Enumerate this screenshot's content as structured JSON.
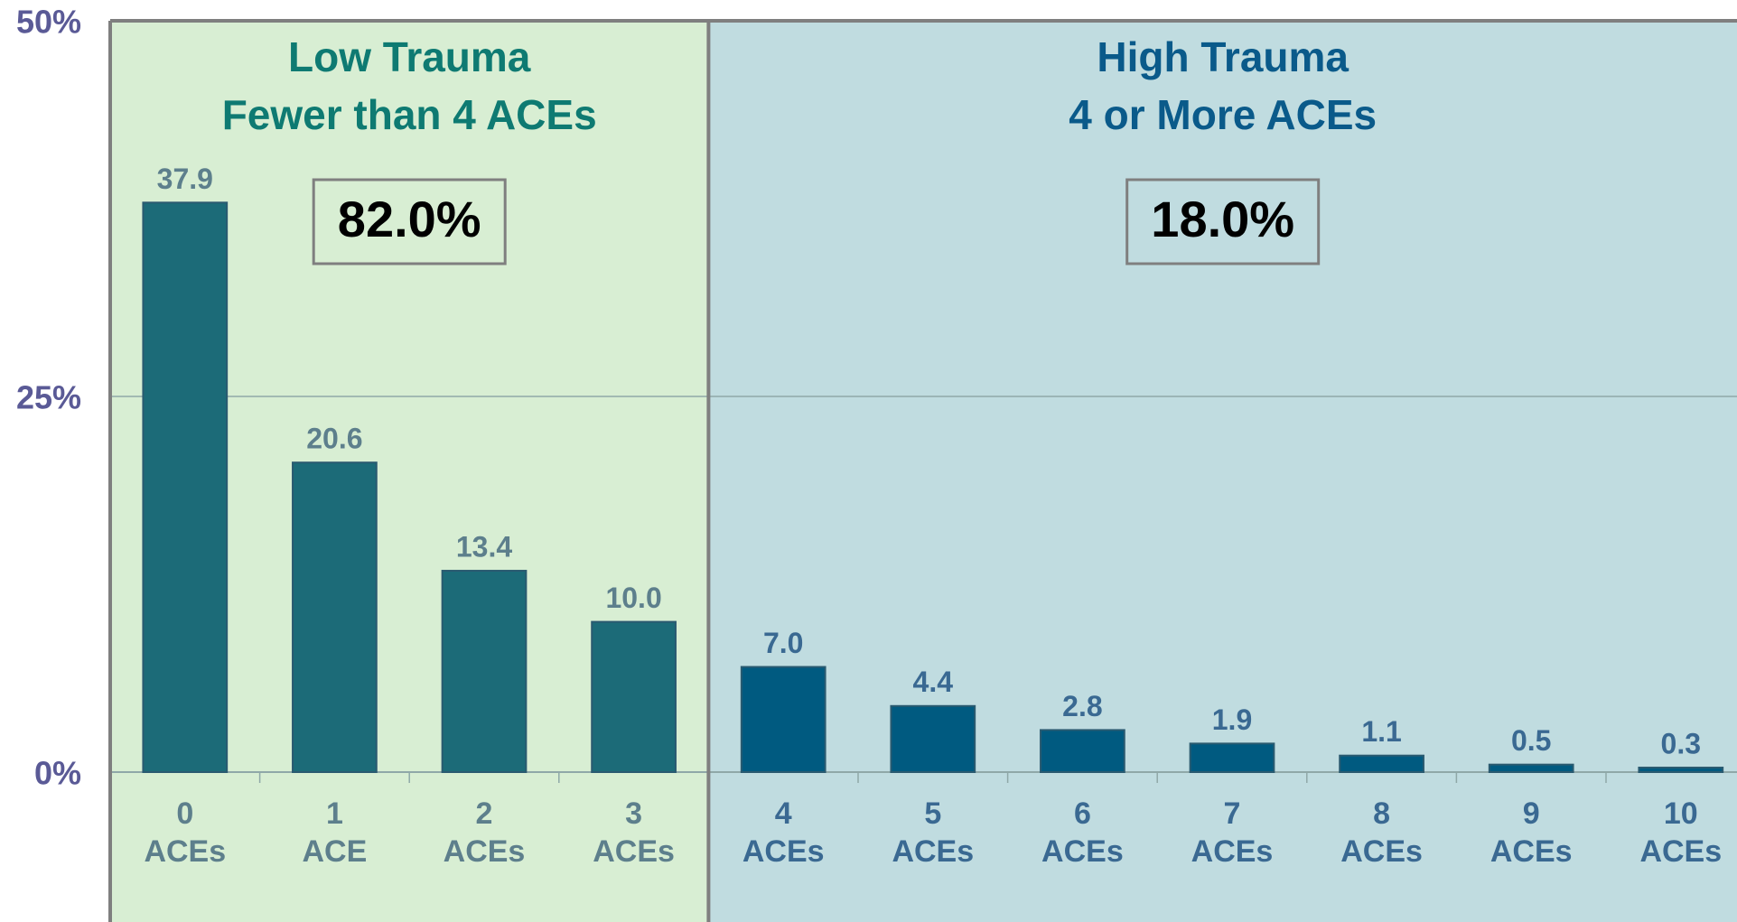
{
  "chart_data": {
    "type": "bar",
    "categories": [
      "0 ACEs",
      "1 ACE",
      "2 ACEs",
      "3 ACEs",
      "4 ACEs",
      "5 ACEs",
      "6 ACEs",
      "7 ACEs",
      "8 ACEs",
      "9 ACEs",
      "10 ACEs"
    ],
    "values": [
      37.9,
      20.6,
      13.4,
      10.0,
      7.0,
      4.4,
      2.8,
      1.9,
      1.1,
      0.5,
      0.3
    ],
    "value_labels": [
      "37.9",
      "20.6",
      "13.4",
      "10.0",
      "7.0",
      "4.4",
      "2.8",
      "1.9",
      "1.1",
      "0.5",
      "0.3"
    ],
    "colors": [
      "#1c6b78",
      "#1c6b78",
      "#1c6b78",
      "#1c6b78",
      "#005a80",
      "#005a80",
      "#005a80",
      "#005a80",
      "#005a80",
      "#005a80",
      "#005a80"
    ],
    "ylim": [
      0,
      50
    ],
    "yticks": [
      {
        "value": 0,
        "label": "0%"
      },
      {
        "value": 25,
        "label": "25%"
      },
      {
        "value": 50,
        "label": "50%"
      }
    ],
    "grid": true,
    "regions": [
      {
        "lines": [
          "Low Trauma",
          "Fewer than 4 ACEs"
        ],
        "share": "82.0%",
        "title_color": "#0e7a72",
        "background": "#d8eed3",
        "label_color": "#5d7f8c"
      },
      {
        "lines": [
          "High Trauma",
          "4 or More ACEs"
        ],
        "share": "18.0%",
        "title_color": "#0a5a8a",
        "background": "#c0dce0",
        "label_color": "#3a6992"
      }
    ]
  }
}
